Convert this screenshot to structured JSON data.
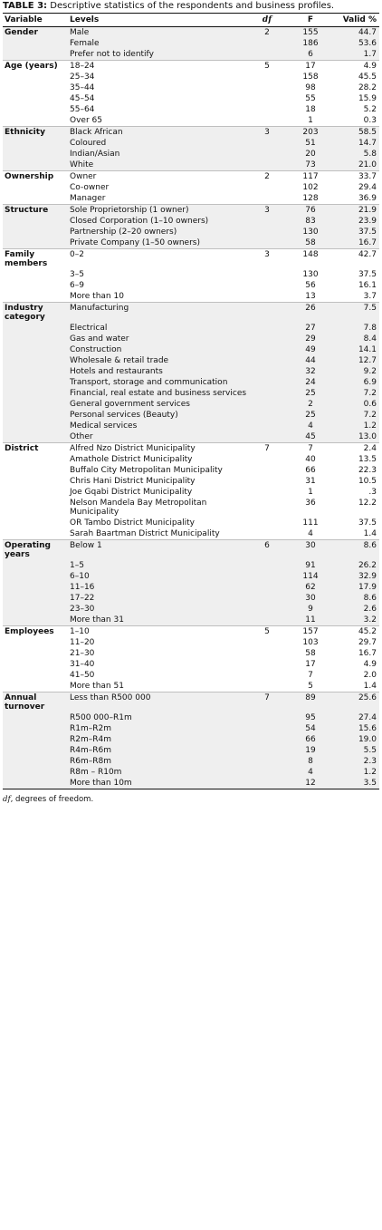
{
  "caption": {
    "label": "TABLE 3:",
    "text": " Descriptive statistics of the respondents and business profiles."
  },
  "headers": {
    "variable": "Variable",
    "levels": "Levels",
    "df": "df",
    "f": "F",
    "valid": "Valid %"
  },
  "groups": [
    {
      "variable": "Gender",
      "df": "2",
      "rows": [
        {
          "level": "Male",
          "f": "155",
          "valid": "44.7"
        },
        {
          "level": "Female",
          "f": "186",
          "valid": "53.6"
        },
        {
          "level": "Prefer not to identify",
          "f": "6",
          "valid": "1.7"
        }
      ]
    },
    {
      "variable": "Age (years)",
      "df": "5",
      "rows": [
        {
          "level": "18–24",
          "f": "17",
          "valid": "4.9"
        },
        {
          "level": "25–34",
          "f": "158",
          "valid": "45.5"
        },
        {
          "level": "35–44",
          "f": "98",
          "valid": "28.2"
        },
        {
          "level": "45–54",
          "f": "55",
          "valid": "15.9"
        },
        {
          "level": "55–64",
          "f": "18",
          "valid": "5.2"
        },
        {
          "level": "Over 65",
          "f": "1",
          "valid": "0.3"
        }
      ]
    },
    {
      "variable": "Ethnicity",
      "df": "3",
      "rows": [
        {
          "level": "Black African",
          "f": "203",
          "valid": "58.5"
        },
        {
          "level": "Coloured",
          "f": "51",
          "valid": "14.7"
        },
        {
          "level": "Indian/Asian",
          "f": "20",
          "valid": "5.8"
        },
        {
          "level": "White",
          "f": "73",
          "valid": "21.0"
        }
      ]
    },
    {
      "variable": "Ownership",
      "df": "2",
      "rows": [
        {
          "level": "Owner",
          "f": "117",
          "valid": "33.7"
        },
        {
          "level": "Co-owner",
          "f": "102",
          "valid": "29.4"
        },
        {
          "level": "Manager",
          "f": "128",
          "valid": "36.9"
        }
      ]
    },
    {
      "variable": "Structure",
      "df": "3",
      "rows": [
        {
          "level": "Sole Proprietorship (1 owner)",
          "f": "76",
          "valid": "21.9"
        },
        {
          "level": "Closed Corporation (1–10 owners)",
          "f": "83",
          "valid": "23.9"
        },
        {
          "level": "Partnership (2–20 owners)",
          "f": "130",
          "valid": "37.5"
        },
        {
          "level": "Private Company (1–50 owners)",
          "f": "58",
          "valid": "16.7"
        }
      ]
    },
    {
      "variable": "Family members",
      "df": "3",
      "rows": [
        {
          "level": "0–2",
          "f": "148",
          "valid": "42.7"
        },
        {
          "level": "3–5",
          "f": "130",
          "valid": "37.5"
        },
        {
          "level": "6–9",
          "f": "56",
          "valid": "16.1"
        },
        {
          "level": "More than 10",
          "f": "13",
          "valid": "3.7"
        }
      ]
    },
    {
      "variable": "Industry category",
      "df": "",
      "rows": [
        {
          "level": "Manufacturing",
          "f": "26",
          "valid": "7.5"
        },
        {
          "level": "Electrical",
          "f": "27",
          "valid": "7.8"
        },
        {
          "level": "Gas and water",
          "f": "29",
          "valid": "8.4"
        },
        {
          "level": "Construction",
          "f": "49",
          "valid": "14.1"
        },
        {
          "level": "Wholesale & retail trade",
          "f": "44",
          "valid": "12.7"
        },
        {
          "level": "Hotels and restaurants",
          "f": "32",
          "valid": "9.2"
        },
        {
          "level": "Transport, storage and communication",
          "f": "24",
          "valid": "6.9"
        },
        {
          "level": "Financial, real estate and business services",
          "f": "25",
          "valid": "7.2"
        },
        {
          "level": "General government services",
          "f": "2",
          "valid": "0.6"
        },
        {
          "level": "Personal services (Beauty)",
          "f": "25",
          "valid": "7.2"
        },
        {
          "level": "Medical services",
          "f": "4",
          "valid": "1.2"
        },
        {
          "level": "Other",
          "f": "45",
          "valid": "13.0"
        }
      ]
    },
    {
      "variable": "District",
      "df": "7",
      "rows": [
        {
          "level": "Alfred Nzo District Municipality",
          "f": "7",
          "valid": "2.4"
        },
        {
          "level": "Amathole District Municipality",
          "f": "40",
          "valid": "13.5"
        },
        {
          "level": "Buffalo City Metropolitan Municipality",
          "f": "66",
          "valid": "22.3"
        },
        {
          "level": "Chris Hani District Municipality",
          "f": "31",
          "valid": "10.5"
        },
        {
          "level": "Joe Gqabi District Municipality",
          "f": "1",
          "valid": ".3"
        },
        {
          "level": "Nelson Mandela Bay Metropolitan Municipality",
          "f": "36",
          "valid": "12.2"
        },
        {
          "level": "OR Tambo District Municipality",
          "f": "111",
          "valid": "37.5"
        },
        {
          "level": "Sarah Baartman District Municipality",
          "f": "4",
          "valid": "1.4"
        }
      ]
    },
    {
      "variable": "Operating years",
      "df": "6",
      "rows": [
        {
          "level": "Below 1",
          "f": "30",
          "valid": "8.6"
        },
        {
          "level": "1–5",
          "f": "91",
          "valid": "26.2"
        },
        {
          "level": "6–10",
          "f": "114",
          "valid": "32.9"
        },
        {
          "level": "11–16",
          "f": "62",
          "valid": "17.9"
        },
        {
          "level": "17–22",
          "f": "30",
          "valid": "8.6"
        },
        {
          "level": "23–30",
          "f": "9",
          "valid": "2.6"
        },
        {
          "level": "More than 31",
          "f": "11",
          "valid": "3.2"
        }
      ]
    },
    {
      "variable": "Employees",
      "df": "5",
      "rows": [
        {
          "level": "1–10",
          "f": "157",
          "valid": "45.2"
        },
        {
          "level": "11–20",
          "f": "103",
          "valid": "29.7"
        },
        {
          "level": "21–30",
          "f": "58",
          "valid": "16.7"
        },
        {
          "level": "31–40",
          "f": "17",
          "valid": "4.9"
        },
        {
          "level": "41–50",
          "f": "7",
          "valid": "2.0"
        },
        {
          "level": "More than 51",
          "f": "5",
          "valid": "1.4"
        }
      ]
    },
    {
      "variable": "Annual turnover",
      "df": "7",
      "rows": [
        {
          "level": "Less than R500 000",
          "f": "89",
          "valid": "25.6"
        },
        {
          "level": "R500 000–R1m",
          "f": "95",
          "valid": "27.4"
        },
        {
          "level": "R1m–R2m",
          "f": "54",
          "valid": "15.6"
        },
        {
          "level": "R2m–R4m",
          "f": "66",
          "valid": "19.0"
        },
        {
          "level": "R4m–R6m",
          "f": "19",
          "valid": "5.5"
        },
        {
          "level": "R6m–R8m",
          "f": "8",
          "valid": "2.3"
        },
        {
          "level": "R8m – R10m",
          "f": "4",
          "valid": "1.2"
        },
        {
          "level": "More than 10m",
          "f": "12",
          "valid": "3.5"
        }
      ]
    }
  ],
  "footnote": {
    "abbr": "df",
    "text": ", degrees of freedom."
  }
}
